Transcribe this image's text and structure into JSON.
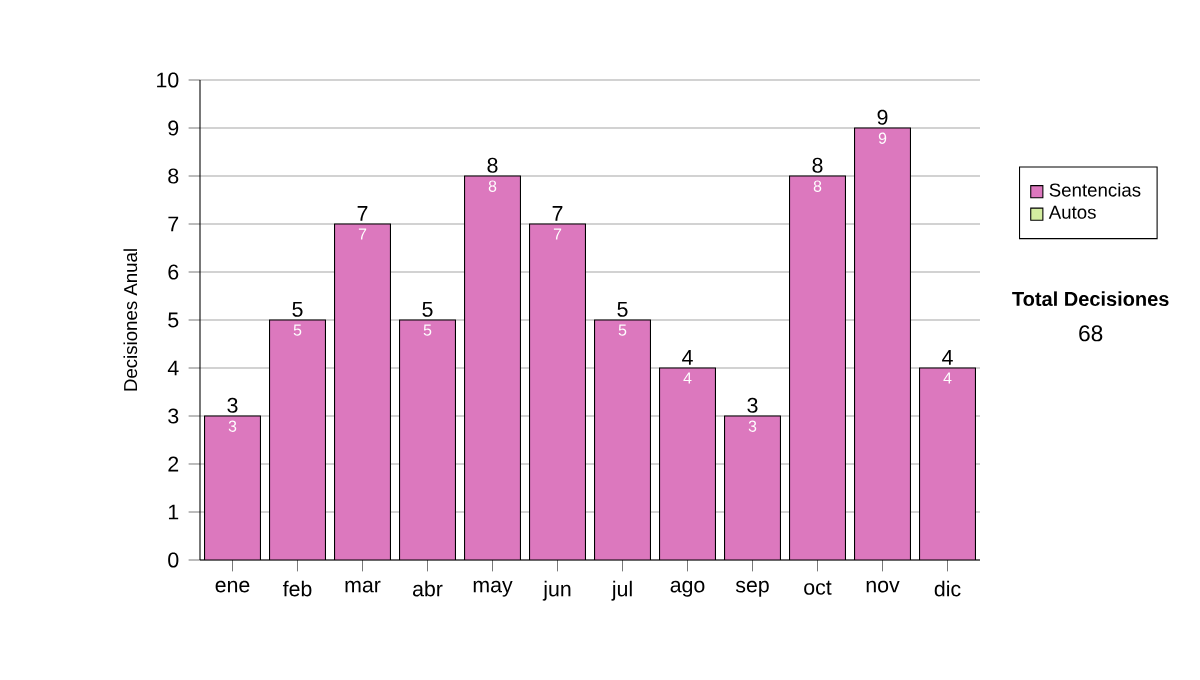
{
  "chart_data": {
    "type": "bar",
    "ylabel": "Decisiones Anual",
    "categories": [
      "ene",
      "feb",
      "mar",
      "abr",
      "may",
      "jun",
      "jul",
      "ago",
      "sep",
      "oct",
      "nov",
      "dic"
    ],
    "series": [
      {
        "name": "Sentencias",
        "color": "#dc78be",
        "values": [
          3,
          5,
          7,
          5,
          8,
          7,
          5,
          4,
          3,
          8,
          9,
          4
        ]
      },
      {
        "name": "Autos",
        "color": "#d4eea0",
        "values": [
          null,
          null,
          null,
          null,
          null,
          null,
          null,
          null,
          null,
          null,
          null,
          null
        ]
      }
    ],
    "stacked": true,
    "data_labels": true,
    "totals": [
      "3",
      "5",
      "7",
      "5",
      "8",
      "7",
      "5",
      "4",
      "3",
      "8",
      "9",
      "4"
    ],
    "ylim": [
      0,
      10
    ],
    "yticks": [
      0,
      1,
      2,
      3,
      4,
      5,
      6,
      7,
      8,
      9,
      10
    ],
    "grid": "y",
    "legend": "right",
    "annotations": [
      "Total Decisiones",
      "68"
    ]
  }
}
